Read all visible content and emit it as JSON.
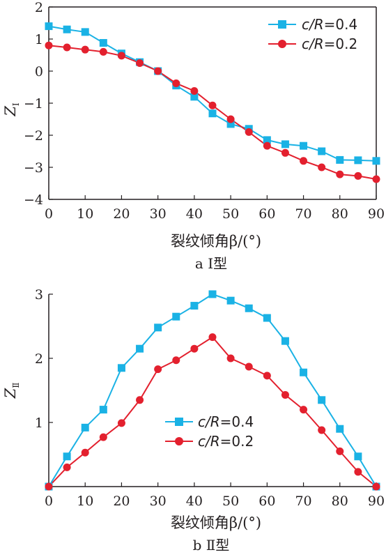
{
  "colors": {
    "c04": "#1ab2e5",
    "c02": "#e3202e",
    "axis": "#231f20"
  },
  "chart_data": [
    {
      "type": "line",
      "caption": "a Ⅰ型",
      "xlabel": "裂纹倾角β/(°)",
      "ylabel": "Z",
      "ylabel_sub": "Ⅰ",
      "xlim": [
        0,
        90
      ],
      "ylim": [
        -4,
        2
      ],
      "xticks": [
        "0",
        "10",
        "20",
        "30",
        "40",
        "50",
        "60",
        "70",
        "80",
        "90"
      ],
      "yticks": [
        "-4",
        "-3",
        "-2",
        "-1",
        "0",
        "1",
        "2"
      ],
      "legend_position": "top-right",
      "x": [
        0,
        5,
        10,
        15,
        20,
        25,
        30,
        35,
        40,
        45,
        50,
        55,
        60,
        65,
        70,
        75,
        80,
        85,
        90
      ],
      "series": [
        {
          "name": "c/R=0.4",
          "name_italic": "c/R",
          "name_value": "=0.4",
          "marker": "square",
          "color": "#1ab2e5",
          "values": [
            1.4,
            1.3,
            1.22,
            0.88,
            0.55,
            0.28,
            0.0,
            -0.45,
            -0.8,
            -1.32,
            -1.65,
            -1.8,
            -2.15,
            -2.28,
            -2.33,
            -2.5,
            -2.77,
            -2.78,
            -2.8
          ]
        },
        {
          "name": "c/R=0.2",
          "name_italic": "c/R",
          "name_value": "=0.2",
          "marker": "circle",
          "color": "#e3202e",
          "values": [
            0.8,
            0.74,
            0.67,
            0.6,
            0.48,
            0.25,
            0.0,
            -0.38,
            -0.62,
            -1.07,
            -1.5,
            -1.9,
            -2.33,
            -2.55,
            -2.8,
            -3.0,
            -3.22,
            -3.27,
            -3.37
          ]
        }
      ]
    },
    {
      "type": "line",
      "caption": "b Ⅱ型",
      "xlabel": "裂纹倾角β/(°)",
      "ylabel": "Z",
      "ylabel_sub": "Ⅱ",
      "xlim": [
        0,
        90
      ],
      "ylim": [
        0,
        3
      ],
      "xticks": [
        "0",
        "10",
        "20",
        "30",
        "40",
        "50",
        "60",
        "70",
        "80",
        "90"
      ],
      "yticks": [
        "1",
        "2",
        "3"
      ],
      "legend_position": "bottom-left",
      "x": [
        0,
        5,
        10,
        15,
        20,
        25,
        30,
        35,
        40,
        45,
        50,
        55,
        60,
        65,
        70,
        75,
        80,
        85,
        90
      ],
      "series": [
        {
          "name": "c/R=0.4",
          "name_italic": "c/R",
          "name_value": "=0.4",
          "marker": "square",
          "color": "#1ab2e5",
          "values": [
            0.0,
            0.47,
            0.92,
            1.2,
            1.85,
            2.15,
            2.48,
            2.65,
            2.82,
            3.0,
            2.9,
            2.78,
            2.63,
            2.27,
            1.78,
            1.35,
            0.9,
            0.47,
            0.0
          ]
        },
        {
          "name": "c/R=0.2",
          "name_italic": "c/R",
          "name_value": "=0.2",
          "marker": "circle",
          "color": "#e3202e",
          "values": [
            0.0,
            0.3,
            0.53,
            0.77,
            0.99,
            1.35,
            1.83,
            1.97,
            2.15,
            2.33,
            2.0,
            1.87,
            1.73,
            1.43,
            1.2,
            0.88,
            0.55,
            0.23,
            0.0
          ]
        }
      ]
    }
  ]
}
